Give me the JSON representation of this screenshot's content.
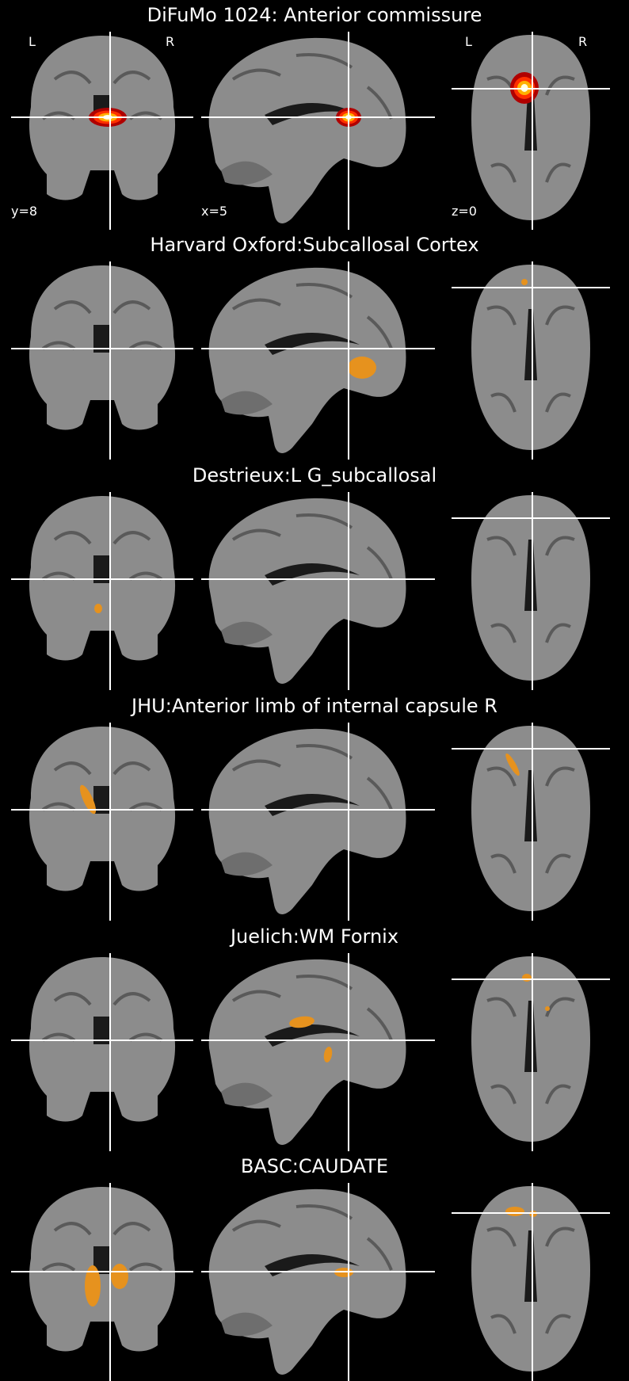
{
  "orientation": {
    "left": "L",
    "right": "R"
  },
  "panels": [
    {
      "title": "DiFuMo 1024: Anterior commissure",
      "coords": {
        "coronal": "y=8",
        "sagittal": "x=5",
        "axial": "z=0"
      },
      "overlay_style": "hot"
    },
    {
      "title": "Harvard Oxford:Subcallosal Cortex",
      "overlay_style": "orange"
    },
    {
      "title": "Destrieux:L G_subcallosal",
      "overlay_style": "orange"
    },
    {
      "title": "JHU:Anterior limb of internal capsule R",
      "overlay_style": "orange"
    },
    {
      "title": "Juelich:WM Fornix",
      "overlay_style": "orange"
    },
    {
      "title": "BASC:CAUDATE",
      "overlay_style": "orange"
    }
  ],
  "colors": {
    "background": "#000000",
    "crosshair": "#ffffff",
    "overlay": "#e6921e"
  }
}
